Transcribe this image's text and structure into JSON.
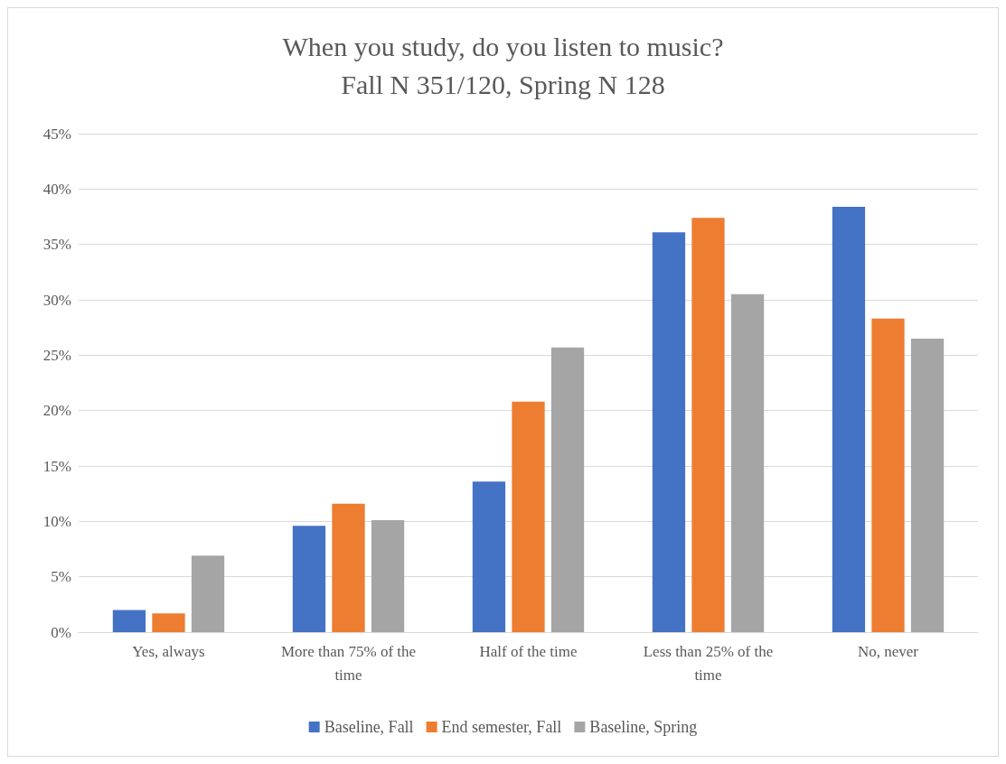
{
  "chart_data": {
    "type": "bar",
    "title": "When you study, do you listen to music?",
    "subtitle": "Fall N 351/120, Spring N 128",
    "categories": [
      "Yes, always",
      "More than 75% of the time",
      "Half of the time",
      "Less than 25% of the time",
      "No, never"
    ],
    "series": [
      {
        "name": "Baseline, Fall",
        "color": "#4472c4",
        "values": [
          2.0,
          9.6,
          13.6,
          36.1,
          38.4
        ]
      },
      {
        "name": "End semester, Fall",
        "color": "#ed7d31",
        "values": [
          1.7,
          11.6,
          20.8,
          37.4,
          28.3
        ]
      },
      {
        "name": "Baseline, Spring",
        "color": "#a5a5a5",
        "values": [
          6.9,
          10.1,
          25.7,
          30.5,
          26.5
        ]
      }
    ],
    "ylim": [
      0,
      45
    ],
    "yticks": [
      {
        "value": 0,
        "label": "0%"
      },
      {
        "value": 5,
        "label": "5%"
      },
      {
        "value": 10,
        "label": "10%"
      },
      {
        "value": 15,
        "label": "15%"
      },
      {
        "value": 20,
        "label": "20%"
      },
      {
        "value": 25,
        "label": "25%"
      },
      {
        "value": 30,
        "label": "30%"
      },
      {
        "value": 35,
        "label": "35%"
      },
      {
        "value": 40,
        "label": "40%"
      },
      {
        "value": 45,
        "label": "45%"
      }
    ],
    "grid": "y",
    "legend": "bottom"
  }
}
